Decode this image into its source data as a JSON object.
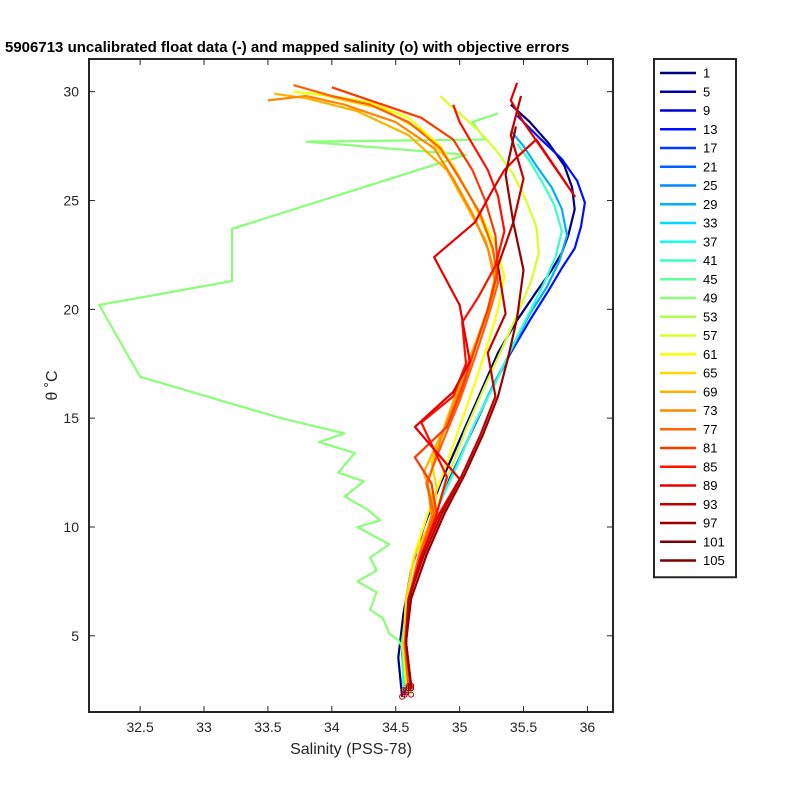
{
  "chart_data": {
    "type": "line",
    "title": "5906713 uncalibrated float data (-) and mapped salinity (o) with objective errors",
    "xlabel": "Salinity (PSS-78)",
    "ylabel": "θ ˚C",
    "xlim": [
      32.1,
      36.2
    ],
    "ylim": [
      1.5,
      31.5
    ],
    "xticks": [
      32.5,
      33,
      33.5,
      34,
      34.5,
      35,
      35.5,
      36
    ],
    "xtick_labels": [
      "32.5",
      "33",
      "33.5",
      "34",
      "34.5",
      "35",
      "35.5",
      "36"
    ],
    "yticks": [
      5,
      10,
      15,
      20,
      25,
      30
    ],
    "ytick_labels": [
      "5",
      "10",
      "15",
      "20",
      "25",
      "30"
    ],
    "grid": false,
    "legend_placement": "outside-right",
    "legend": [
      "1",
      "5",
      "9",
      "13",
      "17",
      "21",
      "25",
      "29",
      "33",
      "37",
      "41",
      "45",
      "49",
      "53",
      "57",
      "61",
      "65",
      "69",
      "73",
      "77",
      "81",
      "85",
      "89",
      "93",
      "97",
      "101",
      "105"
    ],
    "legend_colors": [
      "#00007f",
      "#0000a8",
      "#0000d1",
      "#0010ff",
      "#0038ff",
      "#0060ff",
      "#0088ff",
      "#00b0ff",
      "#00d8ff",
      "#10ffef",
      "#38ffc7",
      "#60ff9f",
      "#88ff77",
      "#b0ff4f",
      "#d8ff27",
      "#ffff00",
      "#ffd800",
      "#ffb000",
      "#ff8800",
      "#ff6000",
      "#ff3800",
      "#ff1000",
      "#e80000",
      "#bf0000",
      "#970000",
      "#7f0000",
      "#7f0000"
    ],
    "series": [
      {
        "name": "1",
        "color": "#00007f",
        "x": [
          34.55,
          34.52,
          34.56,
          34.62,
          34.72,
          34.85,
          35.0,
          35.15,
          35.3,
          35.45,
          35.6,
          35.72,
          35.8,
          35.85,
          35.9,
          35.88,
          35.82,
          35.7,
          35.55,
          35.4
        ],
        "y": [
          2.2,
          4.0,
          6.0,
          8.0,
          10.0,
          12.0,
          14.0,
          16.0,
          18.0,
          19.5,
          20.8,
          21.8,
          22.6,
          23.4,
          24.6,
          25.6,
          26.6,
          27.6,
          28.6,
          29.4
        ]
      },
      {
        "name": "13",
        "color": "#0010ff",
        "x": [
          34.57,
          34.55,
          34.58,
          34.66,
          34.78,
          34.92,
          35.08,
          35.24,
          35.4,
          35.56,
          35.7,
          35.8,
          35.9,
          35.95,
          35.98,
          35.92,
          35.8,
          35.62,
          35.45
        ],
        "y": [
          2.3,
          4.2,
          6.2,
          8.2,
          10.2,
          12.2,
          14.2,
          16.2,
          18.0,
          19.6,
          20.9,
          21.9,
          22.8,
          23.8,
          24.9,
          25.9,
          26.9,
          27.9,
          28.9
        ]
      },
      {
        "name": "29",
        "color": "#00b0ff",
        "x": [
          34.58,
          34.56,
          34.6,
          34.68,
          34.8,
          34.95,
          35.1,
          35.26,
          35.42,
          35.55,
          35.68,
          35.78,
          35.84,
          35.8,
          35.72,
          35.6,
          35.5,
          35.4
        ],
        "y": [
          2.4,
          4.5,
          6.5,
          8.5,
          10.5,
          12.5,
          14.5,
          16.5,
          18.3,
          19.8,
          21.0,
          22.2,
          23.4,
          24.6,
          25.6,
          26.6,
          27.5,
          28.2
        ]
      },
      {
        "name": "41",
        "color": "#38ffc7",
        "x": [
          34.56,
          34.55,
          34.6,
          34.7,
          34.82,
          34.98,
          35.12,
          35.28,
          35.42,
          35.55,
          35.66,
          35.75,
          35.8,
          35.74,
          35.65,
          35.55,
          35.45
        ],
        "y": [
          2.5,
          4.8,
          6.8,
          8.8,
          10.8,
          12.8,
          14.8,
          16.6,
          18.4,
          19.9,
          21.2,
          22.4,
          23.6,
          24.8,
          25.8,
          26.8,
          27.6
        ]
      },
      {
        "name": "53",
        "color": "#88ff77",
        "x": [
          34.62,
          34.55,
          34.52,
          34.45,
          34.4,
          34.3,
          34.35,
          34.2,
          34.35,
          34.3,
          34.45,
          34.2,
          34.38,
          34.28,
          34.1,
          34.25,
          34.05,
          34.18,
          33.9,
          34.1,
          33.6,
          32.5,
          32.18,
          33.22,
          33.22,
          35.05,
          33.8,
          35.2,
          35.1,
          35.3
        ],
        "y": [
          2.3,
          4.5,
          4.8,
          5.1,
          5.8,
          6.2,
          7.0,
          7.5,
          8.0,
          8.6,
          9.2,
          10.0,
          10.3,
          10.8,
          11.4,
          12.1,
          12.5,
          13.4,
          13.9,
          14.3,
          15.0,
          16.9,
          20.2,
          21.3,
          23.7,
          27.1,
          27.7,
          27.8,
          28.6,
          29.0
        ]
      },
      {
        "name": "61",
        "color": "#d8ff27",
        "x": [
          34.58,
          34.56,
          34.6,
          34.68,
          34.8,
          34.92,
          35.05,
          35.2,
          35.34,
          35.46,
          35.56,
          35.62,
          35.6,
          35.52,
          35.42,
          35.3,
          35.15,
          35.0,
          34.9,
          34.85
        ],
        "y": [
          2.5,
          4.5,
          6.5,
          8.5,
          10.5,
          12.5,
          14.5,
          16.5,
          18.3,
          19.9,
          21.3,
          22.6,
          23.8,
          25.0,
          26.2,
          27.2,
          28.2,
          29.0,
          29.5,
          29.8
        ]
      },
      {
        "name": "69",
        "color": "#ffff00",
        "x": [
          34.6,
          34.56,
          34.58,
          34.64,
          34.75,
          34.88,
          35.0,
          35.12,
          35.22,
          35.3,
          35.35,
          35.28,
          35.15,
          35.0,
          34.85,
          34.6,
          34.3,
          34.0,
          33.7
        ],
        "y": [
          2.6,
          4.6,
          6.6,
          8.6,
          10.6,
          12.6,
          14.6,
          16.6,
          18.4,
          20.0,
          21.5,
          23.0,
          24.5,
          26.0,
          27.5,
          28.8,
          29.5,
          29.8,
          30.0
        ]
      },
      {
        "name": "73",
        "color": "#ffd800",
        "x": [
          34.6,
          34.56,
          34.58,
          34.65,
          34.8,
          34.82,
          34.78,
          34.9,
          35.02,
          35.14,
          35.24,
          35.3,
          35.22,
          35.1,
          34.95,
          34.7,
          34.4,
          34.1,
          33.9
        ],
        "y": [
          2.7,
          4.7,
          6.7,
          8.7,
          10.6,
          11.8,
          13.0,
          14.8,
          16.8,
          18.6,
          20.2,
          21.8,
          23.4,
          25.0,
          26.6,
          28.2,
          29.2,
          29.6,
          29.9
        ]
      },
      {
        "name": "77",
        "color": "#ffb000",
        "x": [
          34.62,
          34.57,
          34.6,
          34.68,
          34.78,
          34.8,
          34.72,
          34.88,
          35.0,
          35.12,
          35.22,
          35.28,
          35.2,
          35.05,
          34.9,
          34.6,
          34.2,
          33.8,
          33.55
        ],
        "y": [
          2.7,
          4.7,
          6.7,
          8.7,
          10.5,
          11.0,
          12.5,
          14.6,
          16.6,
          18.4,
          20.0,
          21.6,
          23.2,
          24.8,
          26.4,
          28.0,
          29.1,
          29.7,
          29.9
        ]
      },
      {
        "name": "81",
        "color": "#ff8800",
        "x": [
          34.62,
          34.58,
          34.6,
          34.7,
          34.78,
          34.75,
          34.85,
          34.98,
          35.1,
          35.2,
          35.28,
          35.22,
          35.1,
          34.95,
          34.8,
          34.5,
          34.1,
          33.8,
          33.5
        ],
        "y": [
          2.6,
          4.6,
          6.6,
          8.6,
          10.5,
          12.0,
          14.0,
          16.0,
          17.9,
          19.6,
          21.2,
          22.8,
          24.4,
          26.0,
          27.4,
          28.6,
          29.4,
          29.8,
          29.6
        ]
      },
      {
        "name": "85",
        "color": "#ff6000",
        "x": [
          34.6,
          34.57,
          34.6,
          34.68,
          34.8,
          34.74,
          34.86,
          35.0,
          35.12,
          35.22,
          35.3,
          35.26,
          35.16,
          35.0,
          34.85,
          34.6,
          34.3,
          34.0,
          33.7
        ],
        "y": [
          2.6,
          4.6,
          6.6,
          8.6,
          10.6,
          12.0,
          13.8,
          15.8,
          17.8,
          19.6,
          21.2,
          22.8,
          24.4,
          26.0,
          27.4,
          28.6,
          29.4,
          29.8,
          30.3
        ]
      },
      {
        "name": "89",
        "color": "#ff3800",
        "x": [
          34.62,
          34.58,
          34.6,
          34.7,
          34.82,
          34.78,
          34.65,
          34.9,
          35.02,
          35.12,
          35.22,
          35.3,
          35.28,
          35.2,
          35.1,
          34.95,
          34.7,
          34.3,
          34.0
        ],
        "y": [
          2.6,
          4.6,
          6.6,
          8.6,
          10.6,
          12.0,
          13.2,
          14.6,
          16.4,
          18.2,
          20.0,
          21.8,
          23.4,
          25.0,
          26.4,
          27.8,
          28.8,
          29.6,
          30.2
        ]
      },
      {
        "name": "93",
        "color": "#ff1000",
        "x": [
          34.62,
          34.58,
          34.6,
          34.7,
          34.82,
          34.9,
          34.7,
          34.95,
          35.05,
          35.02,
          35.15,
          35.28,
          35.35,
          35.3,
          35.22,
          35.1,
          35.0,
          34.95
        ],
        "y": [
          2.6,
          4.6,
          6.6,
          8.6,
          10.6,
          12.3,
          14.8,
          16.0,
          17.5,
          19.4,
          20.6,
          22.0,
          23.6,
          25.2,
          26.4,
          27.6,
          28.6,
          29.4
        ]
      },
      {
        "name": "97",
        "color": "#e80000",
        "x": [
          34.62,
          34.58,
          34.6,
          34.7,
          34.84,
          35.0,
          34.65,
          34.95,
          35.08,
          35.0,
          34.8,
          35.12,
          35.25,
          35.35,
          35.45,
          35.6,
          35.9,
          35.5,
          35.4,
          35.45
        ],
        "y": [
          2.7,
          4.7,
          6.7,
          8.7,
          10.6,
          12.2,
          14.6,
          16.2,
          17.6,
          20.2,
          22.4,
          24.0,
          25.4,
          26.4,
          27.0,
          27.8,
          25.2,
          28.6,
          29.6,
          30.4
        ]
      },
      {
        "name": "101",
        "color": "#bf0000",
        "x": [
          34.62,
          34.58,
          34.6,
          34.72,
          34.86,
          35.02,
          35.16,
          35.28,
          35.22,
          35.36,
          35.3,
          35.42,
          35.5,
          35.4,
          35.48
        ],
        "y": [
          2.7,
          4.7,
          6.7,
          8.7,
          10.6,
          12.4,
          14.2,
          16.0,
          18.0,
          19.8,
          22.0,
          24.0,
          26.0,
          28.0,
          29.8
        ]
      },
      {
        "name": "105",
        "color": "#970000",
        "x": [
          34.62,
          34.58,
          34.62,
          34.74,
          34.88,
          35.04,
          35.18,
          35.3,
          35.38,
          35.45,
          35.5,
          35.42,
          35.36,
          35.44
        ],
        "y": [
          2.7,
          4.7,
          6.7,
          8.7,
          10.6,
          12.4,
          14.2,
          16.0,
          17.8,
          19.6,
          21.8,
          24.0,
          26.2,
          28.4
        ]
      }
    ]
  }
}
